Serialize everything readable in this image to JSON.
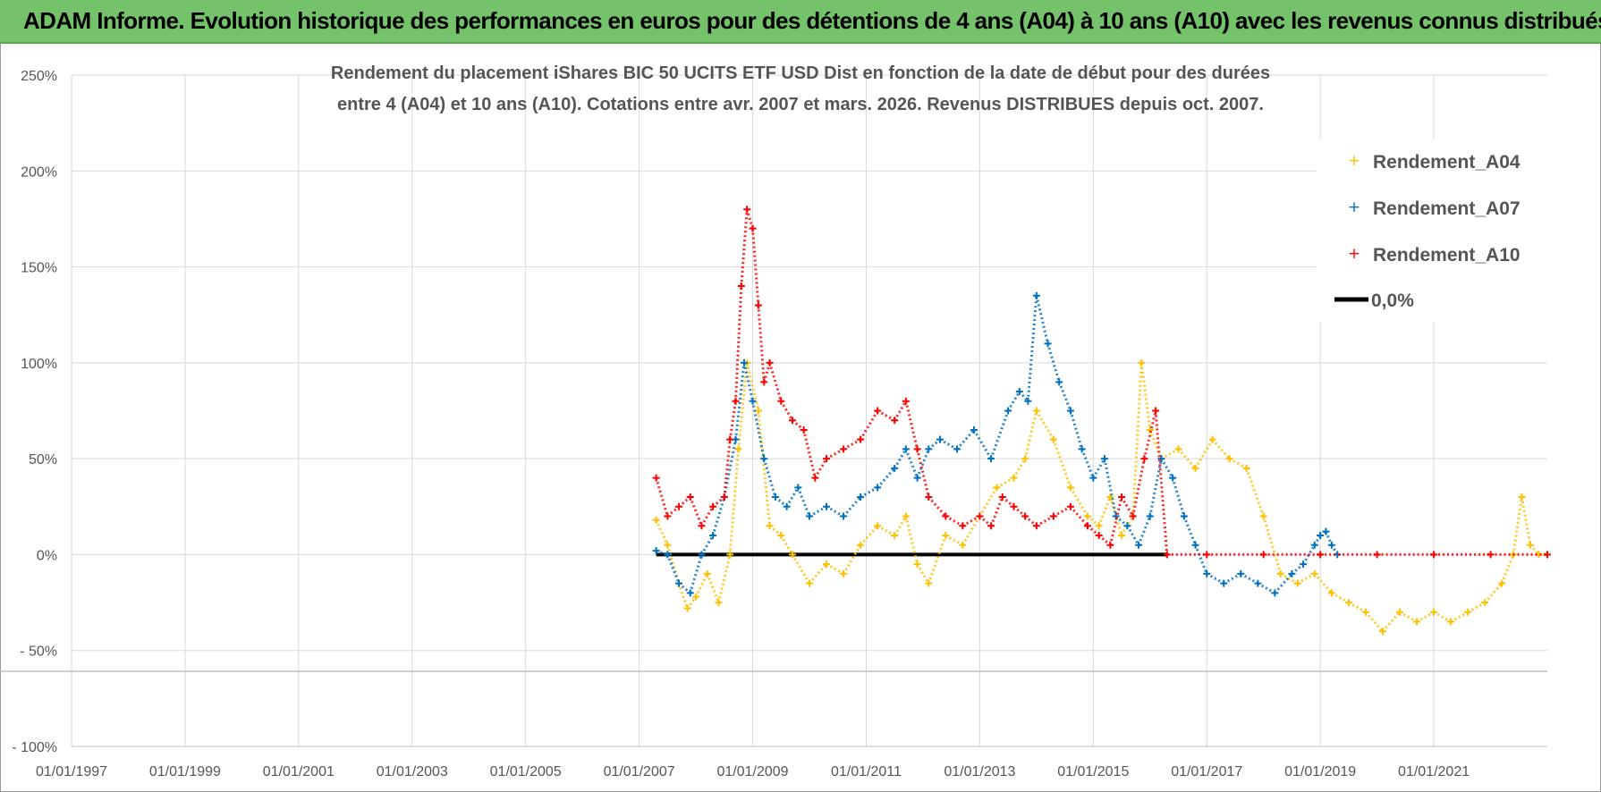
{
  "banner": {
    "title": "ADAM Informe. Evolution historique des performances en euros pour des détentions de 4 ans (A04) à 10 ans (A10) avec les revenus connus distribués"
  },
  "colors": {
    "banner_bg": "#74c26a",
    "a04": "#ffc000",
    "a07": "#0070c0",
    "a10": "#ff0000",
    "zero": "#000000",
    "grid": "#d9d9d9"
  },
  "chart_data": {
    "type": "scatter",
    "title_lines": [
      "Rendement du placement iShares BIC 50 UCITS ETF USD Dist en fonction de la date de début pour des durées",
      "entre 4 (A04) et 10 ans (A10). Cotations entre avr. 2007 et mars. 2026. Revenus DISTRIBUES depuis oct. 2007."
    ],
    "xlabel": "",
    "ylabel": "",
    "xlim": [
      1997.0,
      2023.0
    ],
    "ylim": [
      -100,
      250
    ],
    "x_tick_values": [
      1997,
      1999,
      2001,
      2003,
      2005,
      2007,
      2009,
      2011,
      2013,
      2015,
      2017,
      2019,
      2021
    ],
    "x_tick_labels": [
      "01/01/1997",
      "01/01/1999",
      "01/01/2001",
      "01/01/2003",
      "01/01/2005",
      "01/01/2007",
      "01/01/2009",
      "01/01/2011",
      "01/01/2013",
      "01/01/2015",
      "01/01/2017",
      "01/01/2019",
      "01/01/2021"
    ],
    "y_tick_values": [
      250,
      200,
      150,
      100,
      50,
      0,
      -50,
      -100
    ],
    "y_tick_labels": [
      "250%",
      "200%",
      "150%",
      "100%",
      "50%",
      "0%",
      "- 50%",
      "- 100%"
    ],
    "grid": true,
    "legend_position": "top-right",
    "series": [
      {
        "name": "Rendement_A04",
        "marker": "plus",
        "x": [
          2007.3,
          2007.5,
          2007.7,
          2007.85,
          2008.0,
          2008.2,
          2008.4,
          2008.6,
          2008.75,
          2008.9,
          2009.1,
          2009.3,
          2009.5,
          2009.7,
          2010.0,
          2010.3,
          2010.6,
          2010.9,
          2011.2,
          2011.5,
          2011.7,
          2011.9,
          2012.1,
          2012.4,
          2012.7,
          2013.0,
          2013.3,
          2013.6,
          2013.8,
          2014.0,
          2014.3,
          2014.6,
          2014.9,
          2015.1,
          2015.3,
          2015.5,
          2015.7,
          2015.85,
          2016.0,
          2016.2,
          2016.5,
          2016.8,
          2017.1,
          2017.4,
          2017.7,
          2018.0,
          2018.3,
          2018.6,
          2018.9,
          2019.2,
          2019.5,
          2019.8,
          2020.1,
          2020.4,
          2020.7,
          2021.0,
          2021.3,
          2021.6,
          2021.9,
          2022.2,
          2022.4,
          2022.55,
          2022.7,
          2022.85,
          2023.0
        ],
        "y": [
          18,
          5,
          -15,
          -28,
          -22,
          -10,
          -25,
          0,
          55,
          100,
          75,
          15,
          10,
          0,
          -15,
          -5,
          -10,
          5,
          15,
          10,
          20,
          -5,
          -15,
          10,
          5,
          20,
          35,
          40,
          50,
          75,
          60,
          35,
          20,
          15,
          30,
          10,
          20,
          100,
          65,
          50,
          55,
          45,
          60,
          50,
          45,
          20,
          -10,
          -15,
          -10,
          -20,
          -25,
          -30,
          -40,
          -30,
          -35,
          -30,
          -35,
          -30,
          -25,
          -15,
          0,
          30,
          5,
          0,
          0
        ]
      },
      {
        "name": "Rendement_A07",
        "marker": "plus",
        "x": [
          2007.3,
          2007.5,
          2007.7,
          2007.9,
          2008.1,
          2008.3,
          2008.5,
          2008.7,
          2008.85,
          2009.0,
          2009.2,
          2009.4,
          2009.6,
          2009.8,
          2010.0,
          2010.3,
          2010.6,
          2010.9,
          2011.2,
          2011.5,
          2011.7,
          2011.9,
          2012.1,
          2012.3,
          2012.6,
          2012.9,
          2013.2,
          2013.5,
          2013.7,
          2013.85,
          2014.0,
          2014.2,
          2014.4,
          2014.6,
          2014.8,
          2015.0,
          2015.2,
          2015.4,
          2015.6,
          2015.8,
          2016.0,
          2016.2,
          2016.4,
          2016.6,
          2016.8,
          2017.0,
          2017.3,
          2017.6,
          2017.9,
          2018.2,
          2018.5,
          2018.7,
          2018.9,
          2019.0,
          2019.1,
          2019.2,
          2019.3
        ],
        "y": [
          2,
          0,
          -15,
          -20,
          0,
          10,
          30,
          60,
          100,
          80,
          50,
          30,
          25,
          35,
          20,
          25,
          20,
          30,
          35,
          45,
          55,
          40,
          55,
          60,
          55,
          65,
          50,
          75,
          85,
          80,
          135,
          110,
          90,
          75,
          55,
          40,
          50,
          20,
          15,
          5,
          20,
          50,
          40,
          20,
          5,
          -10,
          -15,
          -10,
          -15,
          -20,
          -10,
          -5,
          5,
          10,
          12,
          5,
          0
        ]
      },
      {
        "name": "Rendement_A10",
        "marker": "plus",
        "x": [
          2007.3,
          2007.5,
          2007.7,
          2007.9,
          2008.1,
          2008.3,
          2008.5,
          2008.6,
          2008.7,
          2008.8,
          2008.9,
          2009.0,
          2009.1,
          2009.2,
          2009.3,
          2009.5,
          2009.7,
          2009.9,
          2010.1,
          2010.3,
          2010.6,
          2010.9,
          2011.2,
          2011.5,
          2011.7,
          2011.9,
          2012.1,
          2012.4,
          2012.7,
          2013.0,
          2013.2,
          2013.4,
          2013.6,
          2013.8,
          2014.0,
          2014.3,
          2014.6,
          2014.9,
          2015.1,
          2015.3,
          2015.5,
          2015.7,
          2015.9,
          2016.1,
          2016.3,
          2017.0,
          2018.0,
          2019.0,
          2020.0,
          2021.0,
          2022.0,
          2023.0
        ],
        "y": [
          40,
          20,
          25,
          30,
          15,
          25,
          30,
          60,
          80,
          140,
          180,
          170,
          130,
          90,
          100,
          80,
          70,
          65,
          40,
          50,
          55,
          60,
          75,
          70,
          80,
          55,
          30,
          20,
          15,
          20,
          15,
          30,
          25,
          20,
          15,
          20,
          25,
          15,
          10,
          5,
          30,
          20,
          50,
          75,
          0,
          0,
          0,
          0,
          0,
          0,
          0,
          0
        ]
      },
      {
        "name": "0,0%",
        "marker": "line",
        "x": [
          2007.3,
          2016.3
        ],
        "y": [
          0,
          0
        ]
      }
    ]
  }
}
